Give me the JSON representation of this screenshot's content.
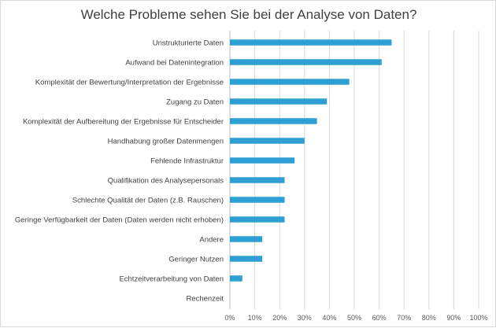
{
  "chart_data": {
    "type": "bar",
    "orientation": "horizontal",
    "title": "Welche Probleme sehen Sie bei der Analyse von Daten?",
    "xlabel": "",
    "ylabel": "",
    "categories": [
      "Unstrukturierte Daten",
      "Aufwand bei Datenintegration",
      "Komplexität der Bewertung/Interpretation der Ergebnisse",
      "Zugang zu Daten",
      "Komplexität der Aufbereitung der Ergebnisse für Entscheider",
      "Handhabung großer Datenmengen",
      "Fehlende Infrastruktur",
      "Qualifikation des Analysepersonals",
      "Schlechte Qualität der Daten (z.B. Rauschen)",
      "Geringe Verfügbarkeit der Daten (Daten werden nicht erhoben)",
      "Andere",
      "Geringer Nutzen",
      "Echtzeitverarbeitung von Daten",
      "Rechenzeit"
    ],
    "values": [
      65,
      61,
      48,
      39,
      35,
      30,
      26,
      22,
      22,
      22,
      13,
      13,
      5,
      0
    ],
    "xlim": [
      0,
      100
    ],
    "ticks": [
      "0%",
      "10%",
      "20%",
      "30%",
      "40%",
      "50%",
      "60%",
      "70%",
      "80%",
      "90%",
      "100%"
    ],
    "grid": true,
    "legend": "none",
    "bar_color": "#2e9fd4",
    "grid_color": "#d9d9d9"
  }
}
